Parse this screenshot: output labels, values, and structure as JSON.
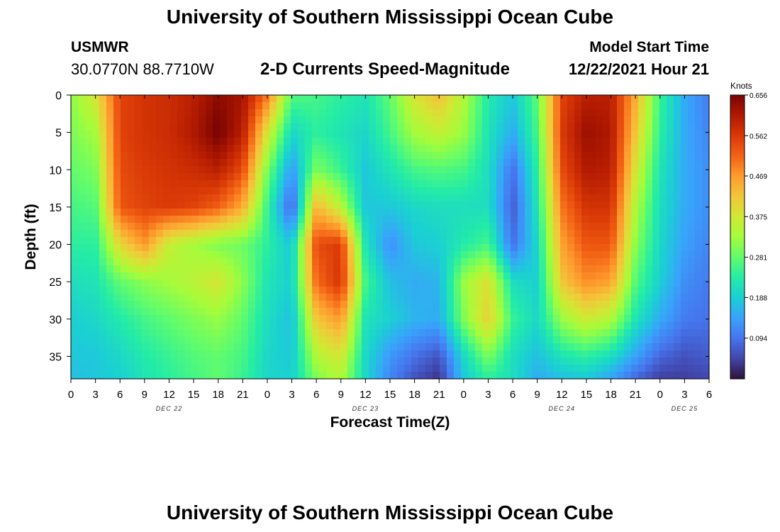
{
  "header": {
    "title": "University of Southern Mississippi Ocean Cube",
    "station_id": "USMWR",
    "coordinates": "30.0770N  88.7710W",
    "plot_title": "2-D Currents Speed-Magnitude",
    "model_start_label": "Model Start Time",
    "model_start_time": "12/22/2021 Hour 21"
  },
  "footer": {
    "title": "University of Southern Mississippi Ocean Cube"
  },
  "colors": {
    "colormap": [
      "#30123b",
      "#4145ab",
      "#4675ed",
      "#39a2fc",
      "#1bcfd4",
      "#24eca6",
      "#61fc6c",
      "#a4fc3b",
      "#d1e834",
      "#f3c63a",
      "#fe9b2d",
      "#f36315",
      "#d93806",
      "#b11901",
      "#7a0402"
    ]
  },
  "chart_data": {
    "type": "heatmap",
    "title": "2-D Currents Speed-Magnitude",
    "xlabel": "Forecast Time(Z)",
    "ylabel": "Depth (ft)",
    "x_tick_labels": [
      "0",
      "3",
      "6",
      "9",
      "12",
      "15",
      "18",
      "21",
      "0",
      "3",
      "6",
      "9",
      "12",
      "15",
      "18",
      "21",
      "0",
      "3",
      "6",
      "9",
      "12",
      "15",
      "18",
      "21",
      "0",
      "3",
      "6"
    ],
    "day_labels": [
      {
        "label": "DEC 22",
        "tick": 4
      },
      {
        "label": "DEC 23",
        "tick": 12
      },
      {
        "label": "DEC 24",
        "tick": 20
      },
      {
        "label": "DEC 25",
        "tick": 25
      }
    ],
    "xlim_hours": [
      0,
      78
    ],
    "y_ticks": [
      0,
      5,
      10,
      15,
      20,
      25,
      30,
      35
    ],
    "ylim": [
      0,
      38
    ],
    "colorbar": {
      "title": "Knots",
      "ticks": [
        0.656,
        0.562,
        0.469,
        0.375,
        0.281,
        0.188,
        0.094
      ],
      "range": [
        0.0,
        0.656
      ]
    },
    "speed_field": {
      "units": "Knots",
      "x_hours": [
        0,
        3,
        6,
        9,
        12,
        15,
        18,
        21,
        24,
        27,
        30,
        33,
        36,
        39,
        42,
        45,
        48,
        51,
        54,
        57,
        60,
        63,
        66,
        69,
        72,
        75,
        78
      ],
      "depths_ft": [
        0,
        5,
        10,
        15,
        20,
        25,
        30,
        35,
        38
      ],
      "values": [
        [
          0.31,
          0.3,
          0.28,
          0.26,
          0.24,
          0.21,
          0.19,
          0.18,
          0.17
        ],
        [
          0.38,
          0.33,
          0.3,
          0.27,
          0.24,
          0.22,
          0.2,
          0.18,
          0.18
        ],
        [
          0.55,
          0.55,
          0.54,
          0.53,
          0.4,
          0.28,
          0.23,
          0.2,
          0.19
        ],
        [
          0.57,
          0.57,
          0.56,
          0.55,
          0.47,
          0.31,
          0.26,
          0.23,
          0.22
        ],
        [
          0.58,
          0.58,
          0.57,
          0.56,
          0.36,
          0.33,
          0.28,
          0.25,
          0.24
        ],
        [
          0.6,
          0.61,
          0.58,
          0.55,
          0.33,
          0.35,
          0.3,
          0.27,
          0.26
        ],
        [
          0.64,
          0.66,
          0.6,
          0.52,
          0.3,
          0.38,
          0.32,
          0.28,
          0.28
        ],
        [
          0.62,
          0.6,
          0.54,
          0.45,
          0.29,
          0.31,
          0.28,
          0.26,
          0.25
        ],
        [
          0.5,
          0.38,
          0.3,
          0.25,
          0.24,
          0.22,
          0.21,
          0.2,
          0.2
        ],
        [
          0.27,
          0.2,
          0.13,
          0.07,
          0.18,
          0.19,
          0.17,
          0.18,
          0.19
        ],
        [
          0.26,
          0.24,
          0.3,
          0.44,
          0.54,
          0.51,
          0.42,
          0.34,
          0.3
        ],
        [
          0.24,
          0.22,
          0.25,
          0.35,
          0.56,
          0.57,
          0.47,
          0.38,
          0.34
        ],
        [
          0.22,
          0.2,
          0.18,
          0.18,
          0.22,
          0.26,
          0.22,
          0.2,
          0.2
        ],
        [
          0.28,
          0.26,
          0.22,
          0.18,
          0.12,
          0.17,
          0.19,
          0.13,
          0.11
        ],
        [
          0.38,
          0.33,
          0.26,
          0.2,
          0.18,
          0.15,
          0.16,
          0.09,
          0.06
        ],
        [
          0.43,
          0.36,
          0.27,
          0.21,
          0.19,
          0.16,
          0.15,
          0.06,
          0.03
        ],
        [
          0.34,
          0.32,
          0.26,
          0.21,
          0.23,
          0.32,
          0.3,
          0.2,
          0.18
        ],
        [
          0.23,
          0.22,
          0.21,
          0.21,
          0.26,
          0.39,
          0.41,
          0.3,
          0.24
        ],
        [
          0.18,
          0.15,
          0.09,
          0.07,
          0.09,
          0.21,
          0.25,
          0.21,
          0.21
        ],
        [
          0.28,
          0.26,
          0.24,
          0.22,
          0.2,
          0.19,
          0.2,
          0.17,
          0.15
        ],
        [
          0.55,
          0.56,
          0.54,
          0.5,
          0.46,
          0.42,
          0.32,
          0.22,
          0.17
        ],
        [
          0.6,
          0.63,
          0.61,
          0.57,
          0.53,
          0.48,
          0.37,
          0.24,
          0.18
        ],
        [
          0.6,
          0.61,
          0.6,
          0.57,
          0.53,
          0.46,
          0.34,
          0.21,
          0.14
        ],
        [
          0.45,
          0.42,
          0.38,
          0.34,
          0.31,
          0.27,
          0.22,
          0.14,
          0.08
        ],
        [
          0.25,
          0.24,
          0.22,
          0.21,
          0.2,
          0.19,
          0.15,
          0.08,
          0.04
        ],
        [
          0.15,
          0.15,
          0.15,
          0.15,
          0.14,
          0.12,
          0.1,
          0.06,
          0.04
        ],
        [
          0.1,
          0.11,
          0.12,
          0.12,
          0.11,
          0.1,
          0.09,
          0.07,
          0.05
        ]
      ]
    }
  }
}
